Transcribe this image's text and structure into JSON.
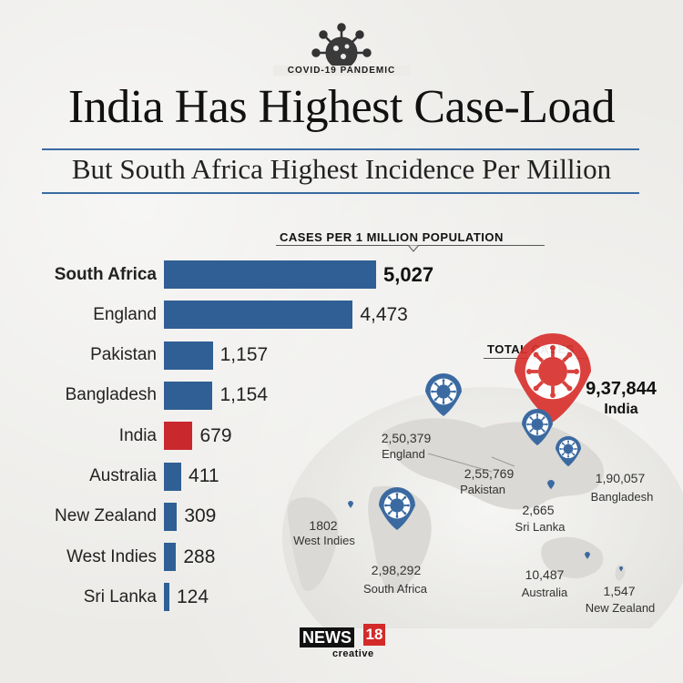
{
  "badge": {
    "text": "COVID-19 PANDEMIC",
    "icon": "virus-icon"
  },
  "title": "India Has Highest Case-Load",
  "subtitle": "But South Africa Highest Incidence Per Million",
  "colors": {
    "bar": "#2f5f94",
    "highlight": "#c9282d",
    "accent_rule": "#3b6aa1",
    "pin": "#3b6aa1",
    "india_pin": "#d8322e"
  },
  "chart_data": [
    {
      "type": "bar",
      "orientation": "horizontal",
      "title": "CASES PER 1 MILLION POPULATION",
      "categories": [
        "South Africa",
        "England",
        "Pakistan",
        "Bangladesh",
        "India",
        "Australia",
        "New Zealand",
        "West Indies",
        "Sri Lanka"
      ],
      "value_labels": [
        "5,027",
        "4,473",
        "1,157",
        "1,154",
        "679",
        "411",
        "309",
        "288",
        "124"
      ],
      "values": [
        5027,
        4473,
        1157,
        1154,
        679,
        411,
        309,
        288,
        124
      ],
      "highlight": [
        "South Africa"
      ],
      "highlight_color_category": "India"
    },
    {
      "type": "map",
      "title": "TOTAL CASES",
      "points": [
        {
          "name": "India",
          "value_label": "9,37,844",
          "value": 937844
        },
        {
          "name": "England",
          "value_label": "2,50,379",
          "value": 250379
        },
        {
          "name": "Pakistan",
          "value_label": "2,55,769",
          "value": 255769
        },
        {
          "name": "Bangladesh",
          "value_label": "1,90,057",
          "value": 190057
        },
        {
          "name": "Sri Lanka",
          "value_label": "2,665",
          "value": 2665
        },
        {
          "name": "West Indies",
          "value_label": "1802",
          "value": 1802
        },
        {
          "name": "South Africa",
          "value_label": "2,98,292",
          "value": 298292
        },
        {
          "name": "Australia",
          "value_label": "10,487",
          "value": 10487
        },
        {
          "name": "New Zealand",
          "value_label": "1,547",
          "value": 1547
        }
      ]
    }
  ],
  "logo": {
    "brand": "NEWS",
    "number": "18",
    "sub": "creative"
  }
}
